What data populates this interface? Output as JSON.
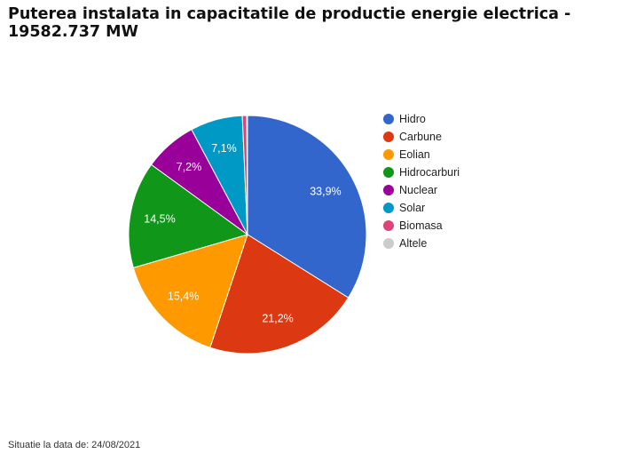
{
  "title": "Puterea instalata in capacitatile de productie energie electrica - 19582.737 MW",
  "footer": "Situatie la data de: 24/08/2021",
  "chart_data": {
    "type": "pie",
    "title": "Puterea instalata in capacitatile de productie energie electrica - 19582.737 MW",
    "legend_position": "right",
    "series": [
      {
        "name": "Hidro",
        "value": 33.9,
        "label": "33,9%",
        "color": "#3366cc"
      },
      {
        "name": "Carbune",
        "value": 21.2,
        "label": "21,2%",
        "color": "#dc3912"
      },
      {
        "name": "Eolian",
        "value": 15.4,
        "label": "15,4%",
        "color": "#ff9900"
      },
      {
        "name": "Hidrocarburi",
        "value": 14.5,
        "label": "14,5%",
        "color": "#109618"
      },
      {
        "name": "Nuclear",
        "value": 7.2,
        "label": "7,2%",
        "color": "#990099"
      },
      {
        "name": "Solar",
        "value": 7.1,
        "label": "7,1%",
        "color": "#0099c6"
      },
      {
        "name": "Biomasa",
        "value": 0.6,
        "label": "",
        "color": "#dd4477"
      },
      {
        "name": "Altele",
        "value": 0.1,
        "label": "",
        "color": "#cccccc"
      }
    ]
  }
}
